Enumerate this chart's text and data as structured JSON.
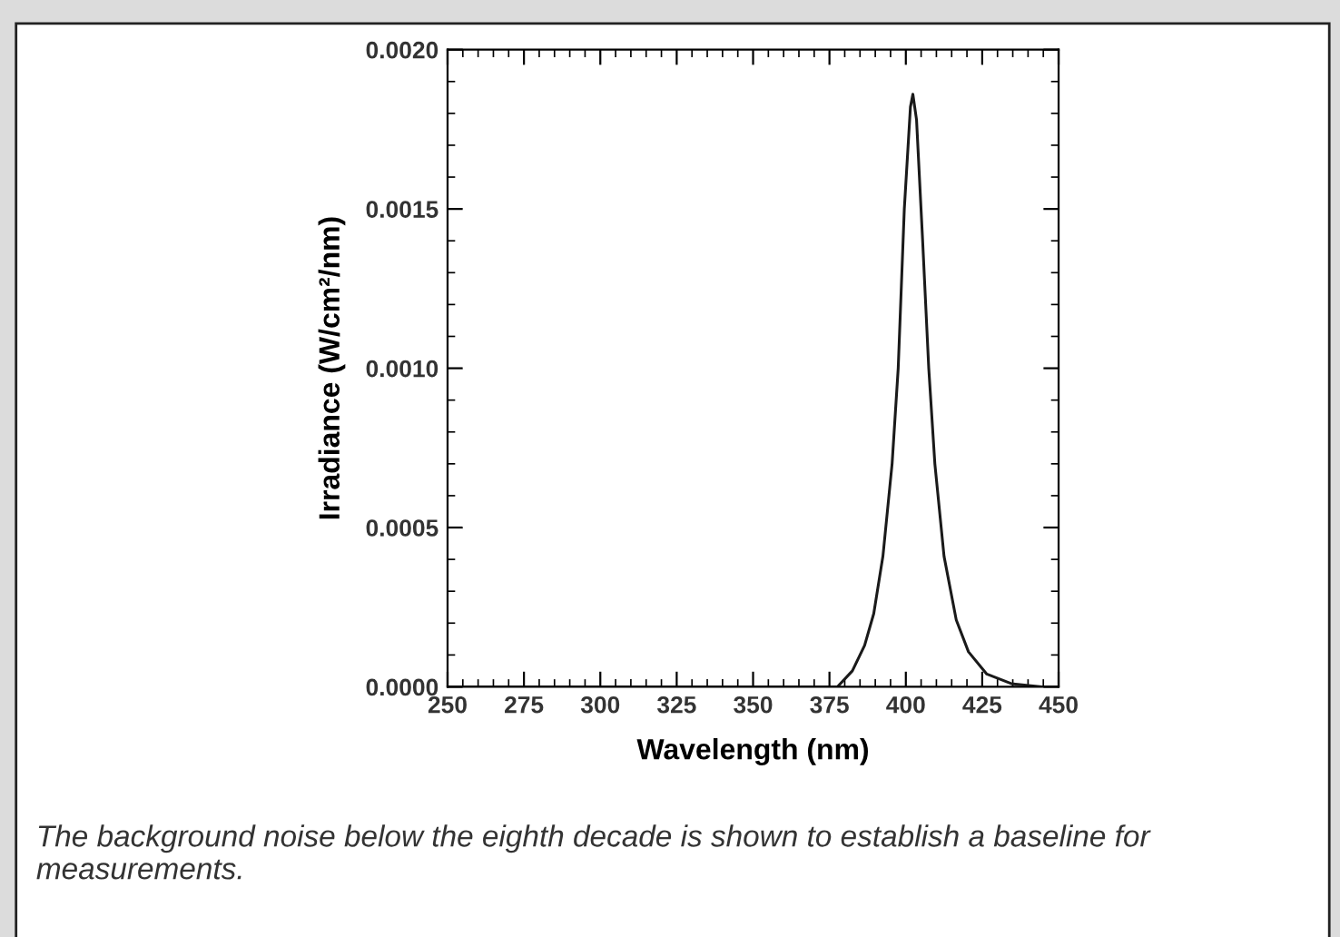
{
  "chart_data": {
    "type": "line",
    "xlabel": "Wavelength (nm)",
    "ylabel": "Irradiance (W/cm²/nm)",
    "x": [
      250,
      300,
      350,
      375,
      377.6,
      382.5,
      386.5,
      389.5,
      392.5,
      395.5,
      397.5,
      399.5,
      401.5,
      402.3,
      403.5,
      405.5,
      407.5,
      409.5,
      412.5,
      416.5,
      420.5,
      426.5,
      434.5,
      444.5,
      450
    ],
    "series": [
      {
        "color": "#1a1a1a",
        "values": [
          0,
          0,
          0,
          0,
          0.0,
          5e-05,
          0.00013,
          0.00023,
          0.00041,
          0.0007,
          0.001,
          0.0015,
          0.00182,
          0.00186,
          0.00178,
          0.0014,
          0.001,
          0.0007,
          0.00041,
          0.00021,
          0.00011,
          4e-05,
          1e-05,
          0.0,
          0
        ]
      }
    ],
    "xlim": [
      250,
      450
    ],
    "xticks": [
      250,
      275,
      300,
      325,
      350,
      375,
      400,
      425,
      450
    ],
    "ylim": [
      0,
      0.002
    ],
    "yticks": [
      {
        "value": 0,
        "label": "0.0000"
      },
      {
        "value": 0.0005,
        "label": "0.0005"
      },
      {
        "value": 0.001,
        "label": "0.0010"
      },
      {
        "value": 0.0015,
        "label": "0.0015"
      },
      {
        "value": 0.002,
        "label": "0.0020"
      }
    ],
    "grid": false,
    "legend": false,
    "marker": "none",
    "line_style": "solid",
    "annotations": [
      "The background noise below the eighth decade is shown to establish a baseline for measurements."
    ]
  }
}
